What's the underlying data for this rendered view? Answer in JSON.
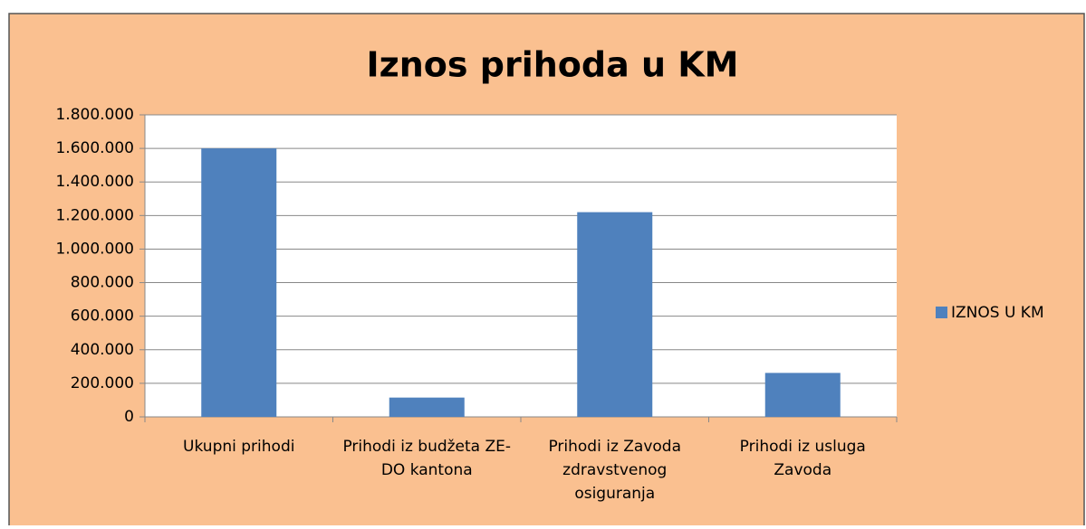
{
  "chart_data": {
    "type": "bar",
    "title": "Iznos prihoda u KM",
    "categories": [
      "Ukupni prihodi",
      "Prihodi iz budžeta ZE-DO kantona",
      "Prihodi iz Zavoda zdravstvenog osiguranja",
      "Prihodi iz usluga Zavoda"
    ],
    "series": [
      {
        "name": "IZNOS U KM",
        "color": "#4f81bd",
        "values": [
          1600000,
          115000,
          1220000,
          262000
        ]
      }
    ],
    "ylim": [
      0,
      1800000
    ],
    "yticks": [
      0,
      {
        "value": 200000,
        "label": "200.000"
      },
      {
        "value": 400000,
        "label": "400.000"
      },
      {
        "value": 600000,
        "label": "600.000"
      },
      {
        "value": 800000,
        "label": "800.000"
      },
      {
        "value": 1000000,
        "label": "1.000.000"
      },
      {
        "value": 1200000,
        "label": "1.200.000"
      },
      {
        "value": 1400000,
        "label": "1.400.000"
      },
      {
        "value": 1600000,
        "label": "1.600.000"
      },
      {
        "value": 1800000,
        "label": "1.800.000"
      }
    ],
    "grid": true,
    "legend": "right"
  }
}
